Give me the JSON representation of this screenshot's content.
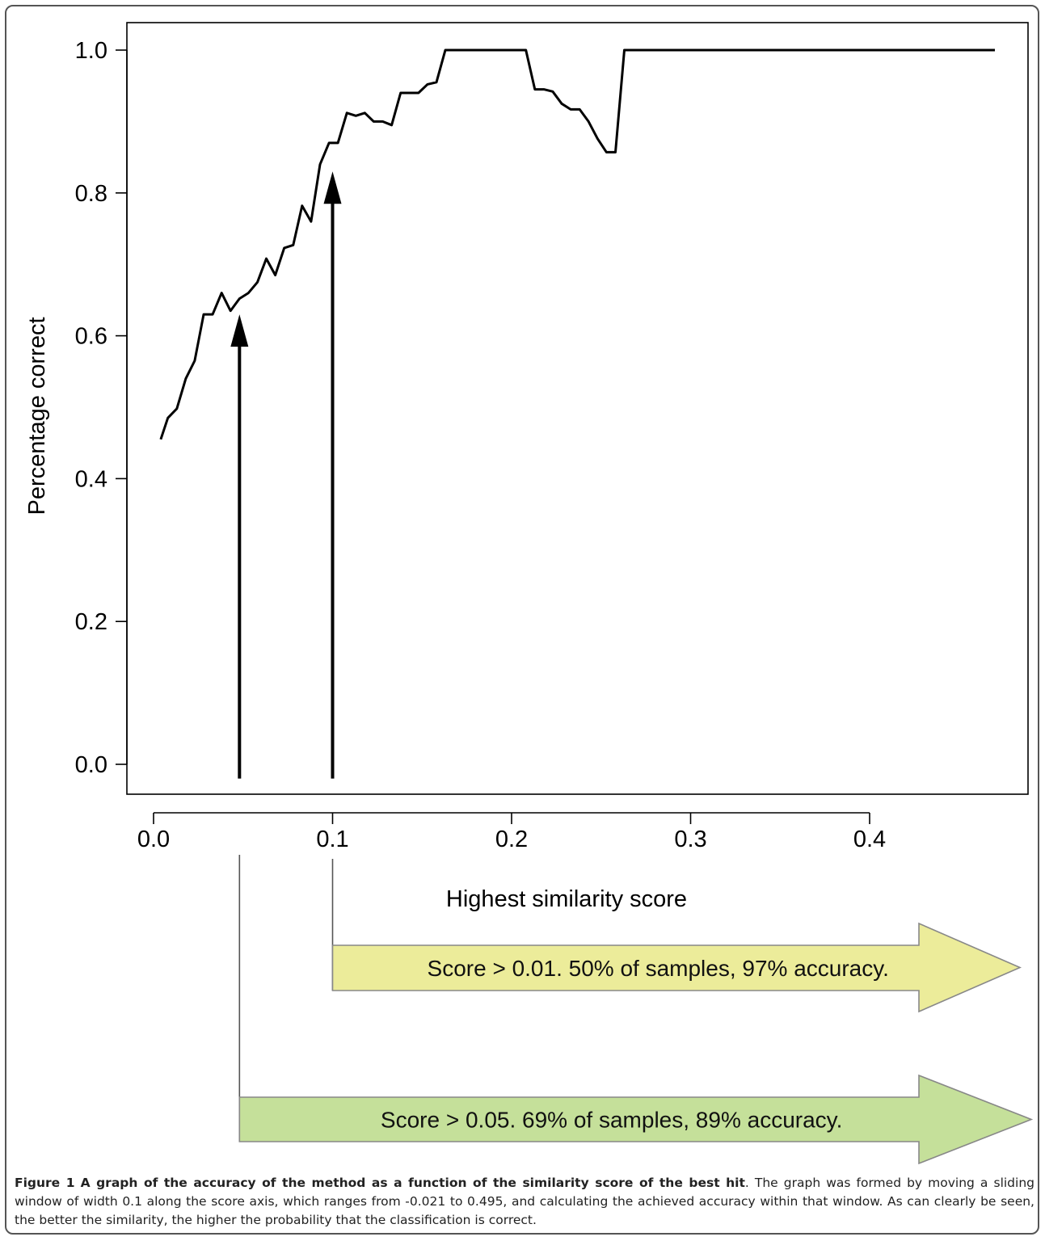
{
  "chart_data": {
    "type": "line",
    "xlabel": "Highest similarity score",
    "ylabel": "Percentage correct",
    "xlim": [
      -0.015,
      0.488
    ],
    "ylim": [
      -0.02,
      1.05
    ],
    "xticks": [
      0.0,
      0.1,
      0.2,
      0.3,
      0.4
    ],
    "yticks": [
      0.0,
      0.2,
      0.4,
      0.6,
      0.8,
      1.0
    ],
    "xtick_labels": [
      "0.0",
      "0.1",
      "0.2",
      "0.3",
      "0.4"
    ],
    "ytick_labels": [
      "0.0",
      "0.2",
      "0.4",
      "0.6",
      "0.8",
      "1.0"
    ],
    "grid": false,
    "series": [
      {
        "x": [
          0.004,
          0.008,
          0.013,
          0.018,
          0.023,
          0.028,
          0.033,
          0.038,
          0.043,
          0.048,
          0.053,
          0.058,
          0.063,
          0.068,
          0.073,
          0.078,
          0.083,
          0.088,
          0.093,
          0.098,
          0.103,
          0.108,
          0.113,
          0.118,
          0.123,
          0.128,
          0.133,
          0.138,
          0.143,
          0.148,
          0.153,
          0.158,
          0.163,
          0.168,
          0.173,
          0.178,
          0.183,
          0.188,
          0.193,
          0.198,
          0.203,
          0.208,
          0.213,
          0.218,
          0.223,
          0.228,
          0.233,
          0.238,
          0.243,
          0.248,
          0.253,
          0.258,
          0.263,
          0.268,
          0.47
        ],
        "values": [
          0.455,
          0.485,
          0.498,
          0.54,
          0.565,
          0.63,
          0.63,
          0.66,
          0.635,
          0.652,
          0.66,
          0.675,
          0.708,
          0.685,
          0.723,
          0.727,
          0.782,
          0.76,
          0.84,
          0.87,
          0.87,
          0.912,
          0.908,
          0.912,
          0.9,
          0.9,
          0.895,
          0.94,
          0.94,
          0.94,
          0.952,
          0.955,
          1.0,
          1.0,
          1.0,
          1.0,
          1.0,
          1.0,
          1.0,
          1.0,
          1.0,
          1.0,
          0.945,
          0.945,
          0.942,
          0.925,
          0.917,
          0.917,
          0.9,
          0.876,
          0.857,
          0.857,
          1.0,
          1.0,
          1.0
        ],
        "color": "#000000"
      }
    ],
    "annotations": [
      {
        "type": "arrow",
        "x": 0.048,
        "y_from": -0.02,
        "y_to": 0.63
      },
      {
        "type": "arrow",
        "x": 0.1,
        "y_from": -0.02,
        "y_to": 0.83
      }
    ]
  },
  "callouts": [
    {
      "text": "Score > 0.01. 50% of samples, 97% accuracy.",
      "fill": "#ecec9a",
      "x_start": 0.1
    },
    {
      "text": "Score > 0.05. 69% of samples, 89% accuracy.",
      "fill": "#c5e09a",
      "x_start": 0.048
    }
  ],
  "caption": {
    "label": "Figure 1",
    "title": "A graph of the accuracy of the method as a function of the similarity score of the best hit",
    "text": ". The graph was formed by moving a sliding window of width 0.1 along the score axis, which ranges from -0.021 to 0.495, and calculating the achieved accuracy within that window. As can clearly be seen, the better the similarity, the higher the probability that the classification is correct."
  }
}
